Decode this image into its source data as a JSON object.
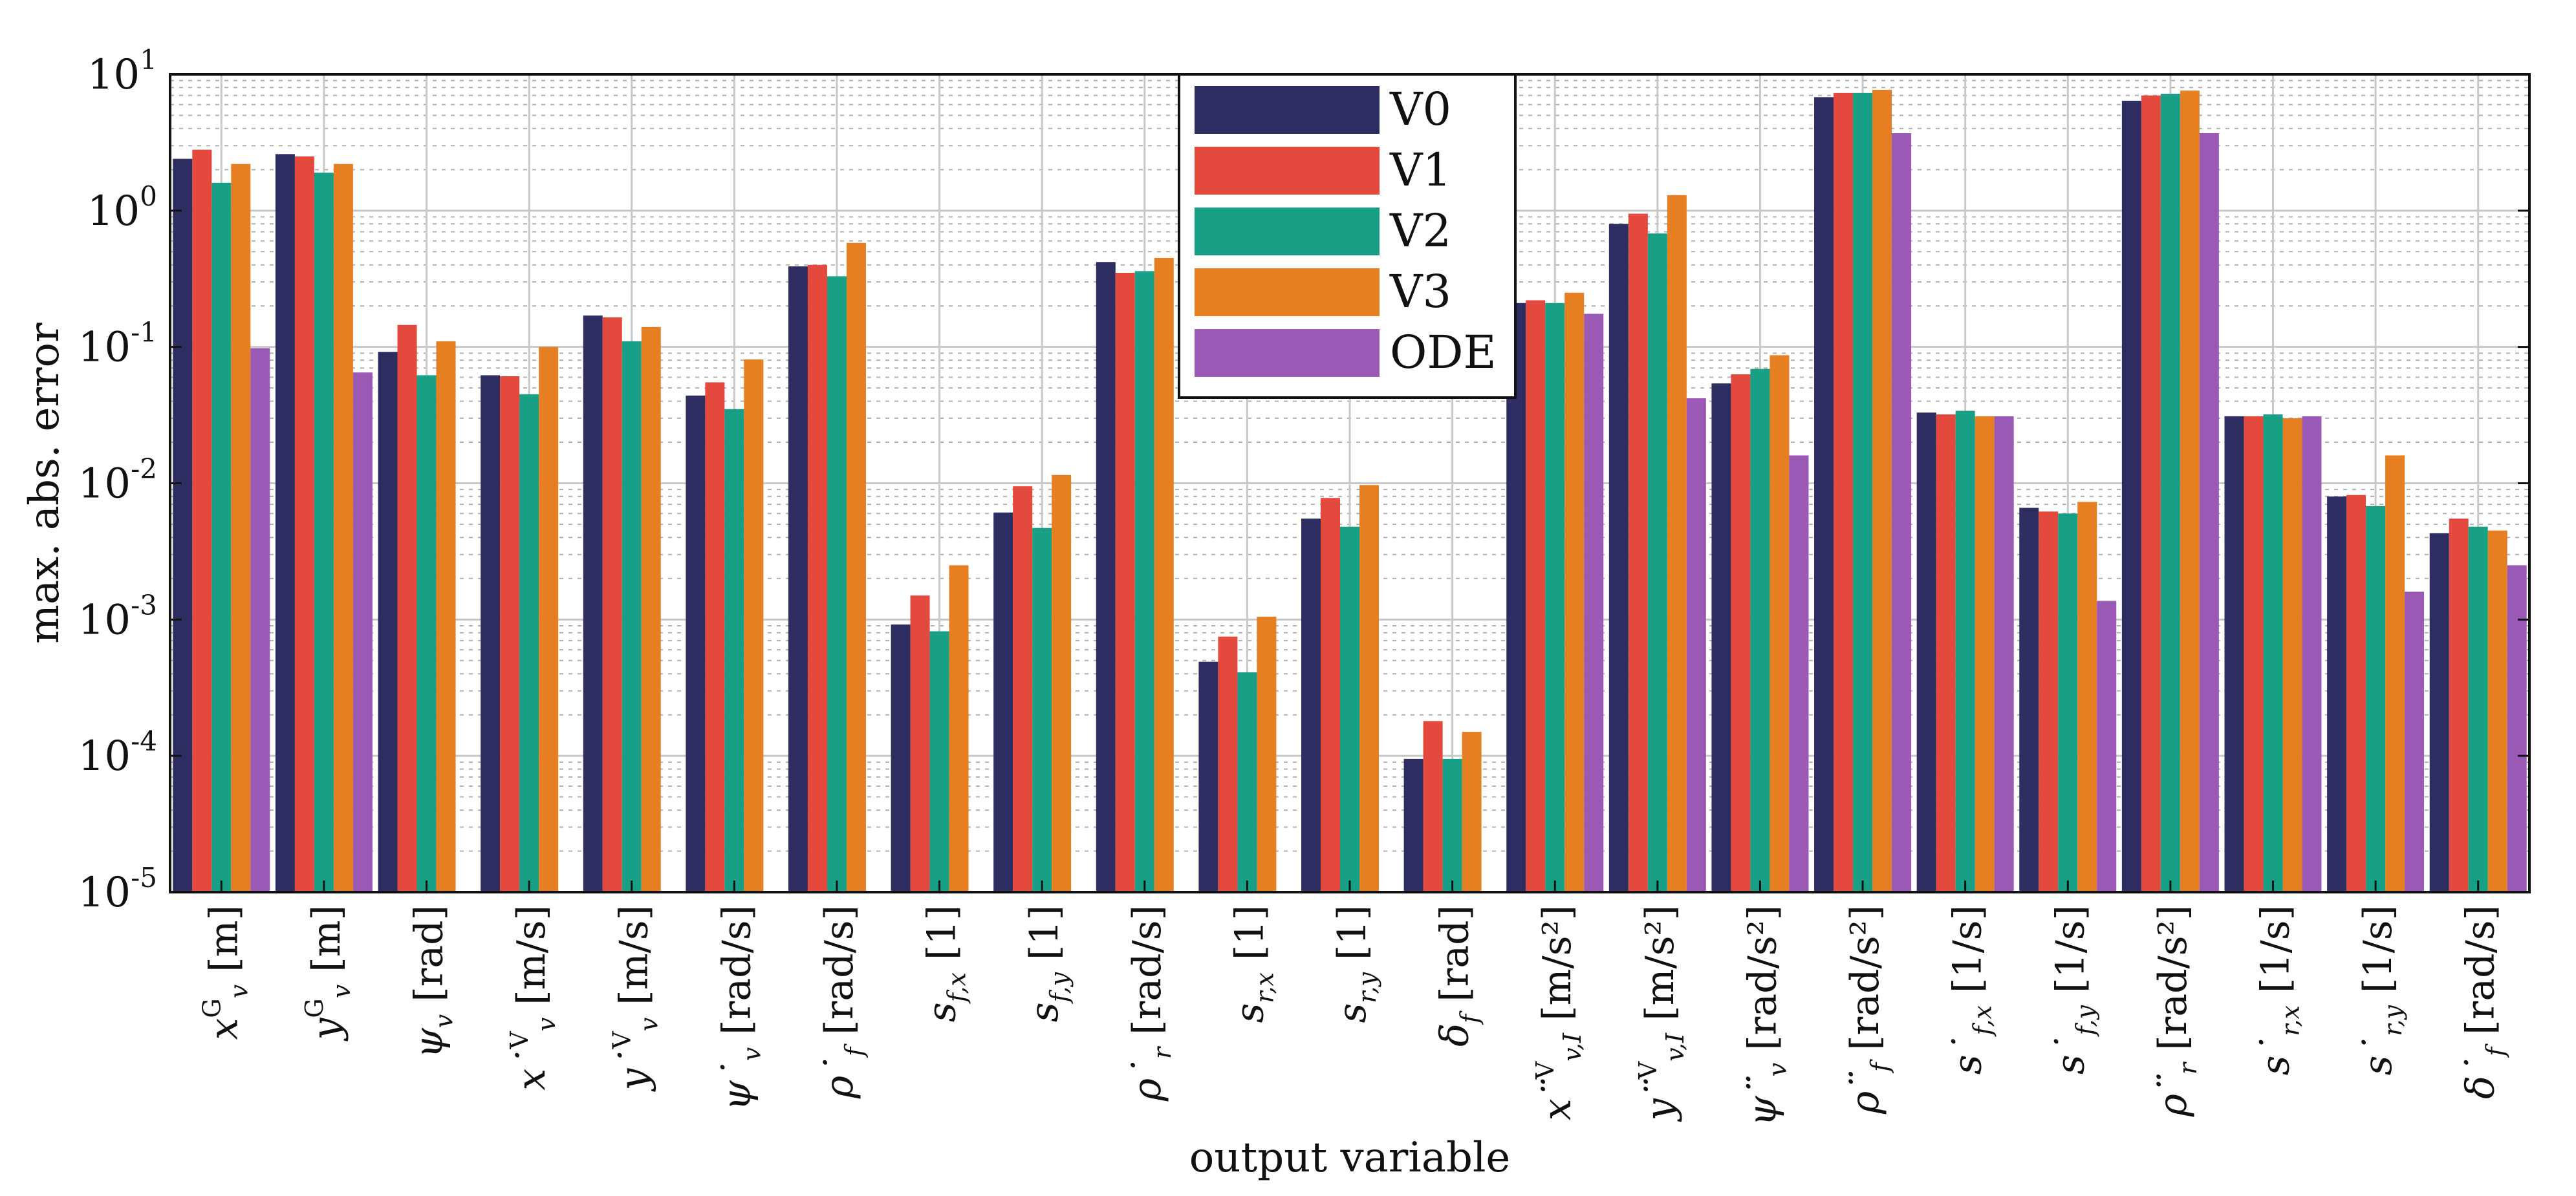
{
  "chart_data": {
    "type": "bar",
    "yscale": "log",
    "ylim": [
      1e-05,
      10
    ],
    "xlabel": "output variable",
    "ylabel": "max. abs. error",
    "ytick_labels": [
      {
        "base": "10",
        "exp": "-5"
      },
      {
        "base": "10",
        "exp": "-4"
      },
      {
        "base": "10",
        "exp": "-3"
      },
      {
        "base": "10",
        "exp": "-2"
      },
      {
        "base": "10",
        "exp": "-1"
      },
      {
        "base": "10",
        "exp": "0"
      },
      {
        "base": "10",
        "exp": "1"
      }
    ],
    "grid": true,
    "legend_position": "top-center",
    "categories": [
      {
        "sym": "x",
        "sub": "v",
        "sup": "G",
        "acc": "",
        "unit": "[m]"
      },
      {
        "sym": "y",
        "sub": "v",
        "sup": "G",
        "acc": "",
        "unit": "[m]"
      },
      {
        "sym": "ψ",
        "sub": "v",
        "sup": "",
        "acc": "",
        "unit": "[rad]"
      },
      {
        "sym": "x",
        "sub": "v",
        "sup": "V",
        "acc": "˙",
        "unit": "[m/s]"
      },
      {
        "sym": "y",
        "sub": "v",
        "sup": "V",
        "acc": "˙",
        "unit": "[m/s]"
      },
      {
        "sym": "ψ",
        "sub": "v",
        "sup": "",
        "acc": "˙",
        "unit": "[rad/s]"
      },
      {
        "sym": "ρ",
        "sub": "f",
        "sup": "",
        "acc": "˙",
        "unit": "[rad/s]"
      },
      {
        "sym": "s",
        "sub": "f,x",
        "sup": "",
        "acc": "",
        "unit": "[1]"
      },
      {
        "sym": "s",
        "sub": "f,y",
        "sup": "",
        "acc": "",
        "unit": "[1]"
      },
      {
        "sym": "ρ",
        "sub": "r",
        "sup": "",
        "acc": "˙",
        "unit": "[rad/s]"
      },
      {
        "sym": "s",
        "sub": "r,x",
        "sup": "",
        "acc": "",
        "unit": "[1]"
      },
      {
        "sym": "s",
        "sub": "r,y",
        "sup": "",
        "acc": "",
        "unit": "[1]"
      },
      {
        "sym": "δ",
        "sub": "f",
        "sup": "",
        "acc": "",
        "unit": "[rad]"
      },
      {
        "sym": "x",
        "sub": "v,I",
        "sup": "V",
        "acc": "¨",
        "unit": "[m/s²]"
      },
      {
        "sym": "y",
        "sub": "v,I",
        "sup": "V",
        "acc": "¨",
        "unit": "[m/s²]"
      },
      {
        "sym": "ψ",
        "sub": "v",
        "sup": "",
        "acc": "¨",
        "unit": "[rad/s²]"
      },
      {
        "sym": "ρ",
        "sub": "f",
        "sup": "",
        "acc": "¨",
        "unit": "[rad/s²]"
      },
      {
        "sym": "s",
        "sub": "f,x",
        "sup": "",
        "acc": "˙",
        "unit": "[1/s]"
      },
      {
        "sym": "s",
        "sub": "f,y",
        "sup": "",
        "acc": "˙",
        "unit": "[1/s]"
      },
      {
        "sym": "ρ",
        "sub": "r",
        "sup": "",
        "acc": "¨",
        "unit": "[rad/s²]"
      },
      {
        "sym": "s",
        "sub": "r,x",
        "sup": "",
        "acc": "˙",
        "unit": "[1/s]"
      },
      {
        "sym": "s",
        "sub": "r,y",
        "sup": "",
        "acc": "˙",
        "unit": "[1/s]"
      },
      {
        "sym": "δ",
        "sub": "f",
        "sup": "",
        "acc": "˙",
        "unit": "[rad/s]"
      }
    ],
    "series": [
      {
        "name": "V0",
        "color": "#2e2d62",
        "values": [
          2.4,
          2.6,
          0.092,
          0.062,
          0.17,
          0.044,
          0.39,
          0.00092,
          0.0061,
          0.42,
          0.00049,
          0.0055,
          9.5e-05,
          0.21,
          0.8,
          0.054,
          6.8,
          0.033,
          0.0066,
          6.4,
          0.031,
          0.008,
          0.0043
        ]
      },
      {
        "name": "V1",
        "color": "#e4493d",
        "values": [
          2.8,
          2.5,
          0.145,
          0.061,
          0.165,
          0.055,
          0.4,
          0.0015,
          0.0095,
          0.35,
          0.00075,
          0.0078,
          0.00018,
          0.22,
          0.95,
          0.063,
          7.3,
          0.032,
          0.0062,
          7.0,
          0.031,
          0.0082,
          0.0055
        ]
      },
      {
        "name": "V2",
        "color": "#17a086",
        "values": [
          1.6,
          1.9,
          0.062,
          0.045,
          0.11,
          0.035,
          0.33,
          0.00082,
          0.0047,
          0.36,
          0.00041,
          0.0048,
          9.5e-05,
          0.21,
          0.68,
          0.069,
          7.3,
          0.034,
          0.006,
          7.2,
          0.032,
          0.0068,
          0.0048
        ]
      },
      {
        "name": "V3",
        "color": "#e67e22",
        "values": [
          2.2,
          2.2,
          0.11,
          0.1,
          0.14,
          0.081,
          0.58,
          0.0025,
          0.0115,
          0.45,
          0.00105,
          0.0097,
          0.00015,
          0.25,
          1.3,
          0.087,
          7.7,
          0.031,
          0.0073,
          7.6,
          0.03,
          0.016,
          0.0045
        ]
      },
      {
        "name": "ODE",
        "color": "#9b59b6",
        "values": [
          0.098,
          0.065,
          null,
          null,
          null,
          null,
          null,
          null,
          null,
          null,
          null,
          null,
          null,
          0.175,
          0.042,
          0.016,
          3.7,
          0.031,
          0.00137,
          3.7,
          0.031,
          0.0016,
          0.0025
        ]
      }
    ]
  }
}
